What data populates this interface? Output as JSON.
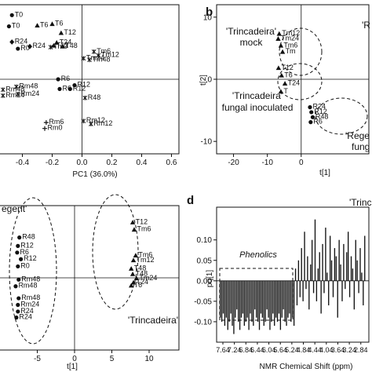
{
  "chart_data": [
    {
      "panel": "a",
      "type": "scatter",
      "xlabel": "PC1 (36.0%)",
      "ylabel": "",
      "xlim": [
        -0.55,
        0.65
      ],
      "ylim": [
        -1.0,
        1.0
      ],
      "xticks": [
        "-0.4",
        "-0.2",
        "0.0",
        "0.2",
        "0.4",
        "0.6"
      ],
      "xtick_values": [
        -0.4,
        -0.2,
        0.0,
        0.2,
        0.4,
        0.6
      ],
      "points": [
        {
          "label": "T0",
          "x": -0.47,
          "y": 0.86,
          "m": "dot"
        },
        {
          "label": "T0",
          "x": -0.49,
          "y": 0.71,
          "m": "dot"
        },
        {
          "label": "T6",
          "x": -0.3,
          "y": 0.72,
          "m": "tri"
        },
        {
          "label": "T6",
          "x": -0.2,
          "y": 0.74,
          "m": "tri"
        },
        {
          "label": "T12",
          "x": -0.14,
          "y": 0.62,
          "m": "tri"
        },
        {
          "label": "T12",
          "x": -0.19,
          "y": 0.45,
          "m": "tri"
        },
        {
          "label": "R24",
          "x": -0.47,
          "y": 0.5,
          "m": "diamond"
        },
        {
          "label": "R24",
          "x": -0.35,
          "y": 0.44,
          "m": "diamond"
        },
        {
          "label": "R0",
          "x": -0.43,
          "y": 0.41,
          "m": "dot"
        },
        {
          "label": "T24",
          "x": -0.17,
          "y": 0.49,
          "m": "tri"
        },
        {
          "label": "Tm0",
          "x": -0.21,
          "y": 0.43,
          "m": "star"
        },
        {
          "label": "T48",
          "x": -0.13,
          "y": 0.44,
          "m": "tri"
        },
        {
          "label": "Tm6",
          "x": 0.08,
          "y": 0.37,
          "m": "star"
        },
        {
          "label": "Tm12",
          "x": 0.11,
          "y": 0.32,
          "m": "star"
        },
        {
          "label": "Tm24",
          "x": 0.01,
          "y": 0.28,
          "m": "star"
        },
        {
          "label": "Tm48",
          "x": 0.05,
          "y": 0.26,
          "m": "star"
        },
        {
          "label": "R6",
          "x": -0.16,
          "y": 0.0,
          "m": "dot"
        },
        {
          "label": "R12",
          "x": -0.05,
          "y": -0.08,
          "m": "dot"
        },
        {
          "label": "R6",
          "x": -0.15,
          "y": -0.13,
          "m": "dot"
        },
        {
          "label": "R12",
          "x": -0.08,
          "y": -0.13,
          "m": "dot"
        },
        {
          "label": "R48",
          "x": 0.02,
          "y": -0.25,
          "m": "star"
        },
        {
          "label": "Rm48",
          "x": -0.44,
          "y": -0.1,
          "m": "star"
        },
        {
          "label": "Rm48",
          "x": -0.53,
          "y": -0.14,
          "m": "star"
        },
        {
          "label": "Rm24",
          "x": -0.53,
          "y": -0.22,
          "m": "star"
        },
        {
          "label": "Rm24",
          "x": -0.43,
          "y": -0.2,
          "m": "star"
        },
        {
          "label": "Rm6",
          "x": -0.24,
          "y": -0.58,
          "m": "plus"
        },
        {
          "label": "Rm0",
          "x": -0.25,
          "y": -0.66,
          "m": "plus"
        },
        {
          "label": "Rm12",
          "x": 0.01,
          "y": -0.56,
          "m": "star"
        },
        {
          "label": "Rm12",
          "x": 0.06,
          "y": -0.6,
          "m": "star"
        }
      ]
    },
    {
      "panel": "b",
      "type": "scatter",
      "xlabel": "t[1]",
      "ylabel": "t[2]",
      "xlim": [
        -25,
        20
      ],
      "ylim": [
        -12,
        12
      ],
      "xticks": [
        "-20",
        "-10",
        "0"
      ],
      "xtick_values": [
        -20,
        -10,
        0
      ],
      "yticks": [
        "10",
        "0",
        "-10"
      ],
      "ytick_values": [
        10,
        0,
        -10
      ],
      "annotations": [
        "'Trincadeira'\nmock",
        "'Trincadeira'\nfungal inoculated",
        "'Rege\nfung",
        "'R"
      ],
      "points": [
        {
          "label": "Tm12",
          "x": -6.5,
          "y": 7.3,
          "m": "tri"
        },
        {
          "label": "Tm24",
          "x": -6.8,
          "y": 6.5,
          "m": "tri"
        },
        {
          "label": "Tm6",
          "x": -6.0,
          "y": 5.4,
          "m": "tri"
        },
        {
          "label": "Tm",
          "x": -5.5,
          "y": 4.4,
          "m": "tri"
        },
        {
          "label": "T12",
          "x": -6.7,
          "y": 1.8,
          "m": "tri"
        },
        {
          "label": "T6",
          "x": -5.8,
          "y": 0.6,
          "m": "tri"
        },
        {
          "label": "T24",
          "x": -4.8,
          "y": -0.7,
          "m": "tri"
        },
        {
          "label": "T",
          "x": -6.0,
          "y": -2.0,
          "m": "tri"
        },
        {
          "label": "R24",
          "x": 2.6,
          "y": -4.5,
          "m": "dot"
        },
        {
          "label": "R12",
          "x": 3.0,
          "y": -5.3,
          "m": "dot"
        },
        {
          "label": "R48",
          "x": 3.4,
          "y": -6.1,
          "m": "dot"
        },
        {
          "label": "R6",
          "x": 2.8,
          "y": -6.9,
          "m": "dot"
        }
      ]
    },
    {
      "panel": "c",
      "type": "scatter",
      "xlabel": "t[1]",
      "ylabel": "",
      "xlim": [
        -10,
        14
      ],
      "ylim": [
        -12,
        12
      ],
      "xticks": [
        "-5",
        "0",
        "5",
        "10"
      ],
      "xtick_values": [
        -5,
        0,
        5,
        10
      ],
      "annotations": [
        "egent'",
        "'Trincadeira'"
      ],
      "points": [
        {
          "label": "T12",
          "x": 7.8,
          "y": 9.2,
          "m": "tri"
        },
        {
          "label": "Tm6",
          "x": 8.0,
          "y": 8.0,
          "m": "tri"
        },
        {
          "label": "Tm6",
          "x": 8.2,
          "y": 3.7,
          "m": "tri"
        },
        {
          "label": "Tm12",
          "x": 7.9,
          "y": 2.9,
          "m": "tri"
        },
        {
          "label": "T48",
          "x": 7.6,
          "y": 1.5,
          "m": "tri"
        },
        {
          "label": "T48",
          "x": 7.8,
          "y": 0.6,
          "m": "tri"
        },
        {
          "label": "Tm24",
          "x": 8.3,
          "y": -0.1,
          "m": "tri"
        },
        {
          "label": "T24",
          "x": 7.9,
          "y": -0.8,
          "m": "tri"
        },
        {
          "label": "T6",
          "x": 7.6,
          "y": -1.3,
          "m": "tri"
        },
        {
          "label": "R48",
          "x": -7.4,
          "y": 6.7,
          "m": "dot"
        },
        {
          "label": "R12",
          "x": -7.6,
          "y": 5.3,
          "m": "dot"
        },
        {
          "label": "R6",
          "x": -7.7,
          "y": 4.2,
          "m": "dot"
        },
        {
          "label": "R12",
          "x": -7.2,
          "y": 3.1,
          "m": "dot"
        },
        {
          "label": "R0",
          "x": -7.6,
          "y": 1.9,
          "m": "dot"
        },
        {
          "label": "Rm48",
          "x": -7.5,
          "y": -0.3,
          "m": "dot"
        },
        {
          "label": "Rm48",
          "x": -7.9,
          "y": -1.4,
          "m": "dot"
        },
        {
          "label": "Rm48",
          "x": -7.5,
          "y": -3.4,
          "m": "dot"
        },
        {
          "label": "Rm24",
          "x": -7.6,
          "y": -4.5,
          "m": "dot"
        },
        {
          "label": "R24",
          "x": -7.6,
          "y": -5.6,
          "m": "dot"
        },
        {
          "label": "R24",
          "x": -7.8,
          "y": -6.6,
          "m": "dot"
        }
      ]
    },
    {
      "panel": "d",
      "type": "bar",
      "title_fragment": "'Trinc",
      "xlabel": "NMR Chemical Shift (ppm)",
      "ylabel": "pq[1]",
      "ylim": [
        -0.15,
        0.18
      ],
      "yticks": [
        "0.10",
        "0.05",
        "0.00",
        "-0.05",
        "-0.10"
      ],
      "ytick_values": [
        0.1,
        0.05,
        0.0,
        -0.05,
        -0.1
      ],
      "xticks": [
        "7.64",
        "7.24",
        "6.84",
        "6.44",
        "6.04",
        "5.64",
        "5.24",
        "4.84",
        "4.44",
        "4.04",
        "3.64",
        "3.24",
        "2.84"
      ],
      "annotation": "Phenolics",
      "values": [
        -0.09,
        -0.1,
        -0.08,
        -0.11,
        -0.09,
        -0.12,
        -0.1,
        -0.08,
        -0.11,
        -0.13,
        -0.09,
        -0.07,
        -0.1,
        -0.12,
        -0.09,
        -0.08,
        -0.11,
        -0.1,
        -0.09,
        -0.12,
        -0.08,
        -0.1,
        -0.11,
        -0.07,
        -0.09,
        -0.1,
        -0.12,
        -0.08,
        -0.09,
        -0.11,
        -0.1,
        -0.07,
        -0.09,
        -0.12,
        -0.1,
        -0.08,
        -0.11,
        -0.09,
        -0.1,
        -0.08,
        -0.12,
        -0.09,
        -0.07,
        -0.1,
        -0.11,
        -0.09,
        -0.08,
        -0.1,
        -0.09,
        -0.11,
        0.03,
        -0.06,
        0.05,
        -0.04,
        0.08,
        -0.05,
        0.12,
        -0.02,
        0.06,
        -0.07,
        0.04,
        0.1,
        -0.03,
        0.15,
        -0.05,
        0.03,
        0.07,
        -0.08,
        0.09,
        -0.03,
        0.13,
        0.02,
        -0.06,
        0.11,
        0.05,
        -0.04,
        0.08,
        0.06,
        -0.09,
        0.1,
        0.04,
        -0.05,
        0.09,
        -0.02,
        0.07,
        0.12,
        -0.04,
        0.06,
        0.03,
        -0.07,
        0.1,
        0.05,
        -0.03,
        0.08,
        0.02,
        -0.06,
        0.11
      ]
    }
  ],
  "panel_labels": {
    "b": "b",
    "d": "d"
  },
  "axis_labels": {
    "a_x": "PC1 (36.0%)",
    "b_x": "t[1]",
    "b_y": "t[2]",
    "c_x": "t[1]",
    "d_x": "NMR Chemical Shift (ppm)",
    "d_y": "pq[1]"
  },
  "annotations": {
    "b_mock": [
      "'Trincadeira'",
      "mock"
    ],
    "b_fungal": [
      "'Trincadeira'",
      "fungal inoculated"
    ],
    "b_rege": [
      "'Rege",
      "fung"
    ],
    "b_r": "'R",
    "c_regent": "egent'",
    "c_trincadeira": "'Trincadeira'",
    "d_trinc": "'Trinc",
    "d_phenolics": "Phenolics"
  }
}
